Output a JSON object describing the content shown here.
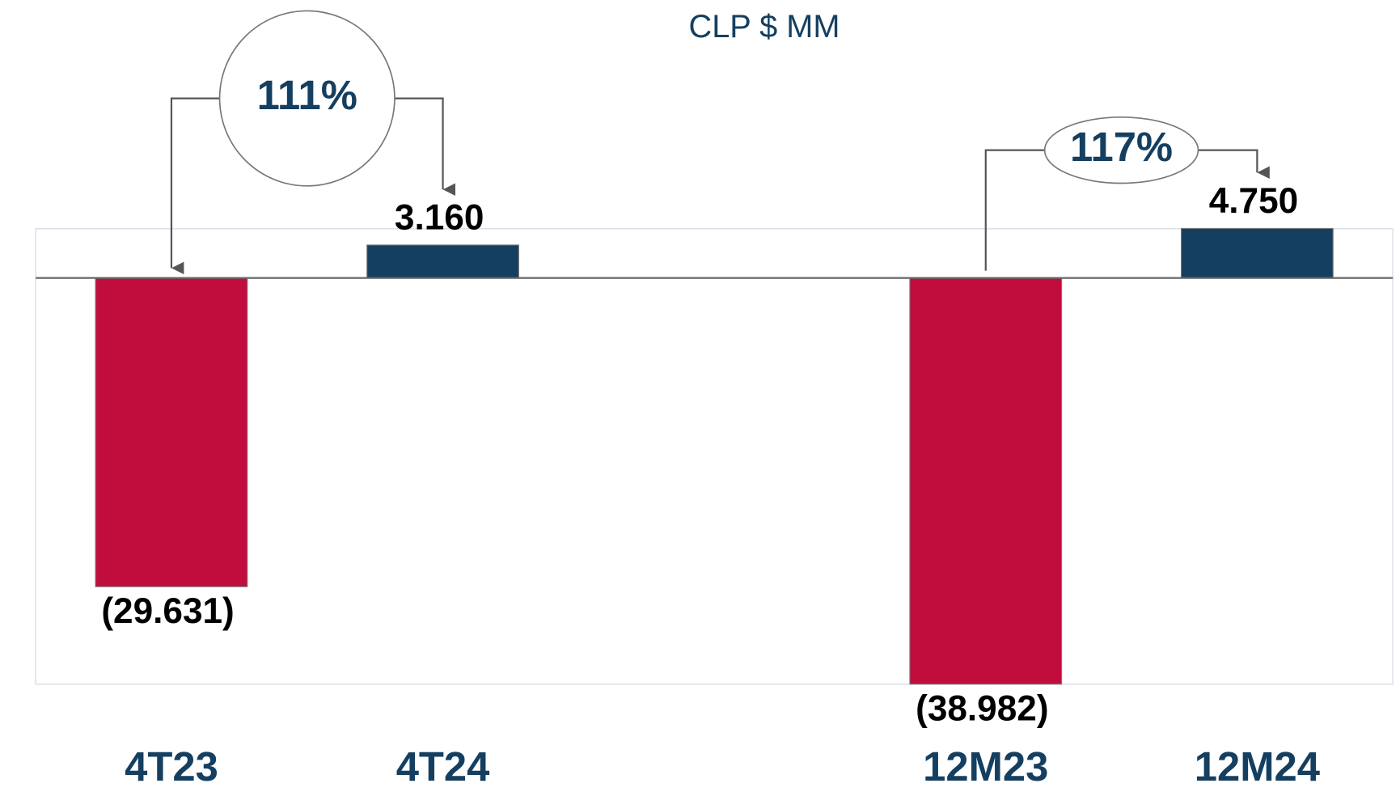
{
  "chart_data": {
    "type": "bar",
    "subtitle": "CLP $ MM",
    "categories": [
      "4T23",
      "4T24",
      "12M23",
      "12M24"
    ],
    "values": [
      -29631,
      3160,
      -38982,
      4750
    ],
    "value_labels": [
      "(29.631)",
      "3.160",
      "(38.982)",
      "4.750"
    ],
    "colors": [
      "#c00d3d",
      "#153f60",
      "#c00d3d",
      "#153f60"
    ],
    "ylim": [
      -38990,
      4720
    ],
    "annotations": [
      "111%",
      "117%"
    ]
  }
}
